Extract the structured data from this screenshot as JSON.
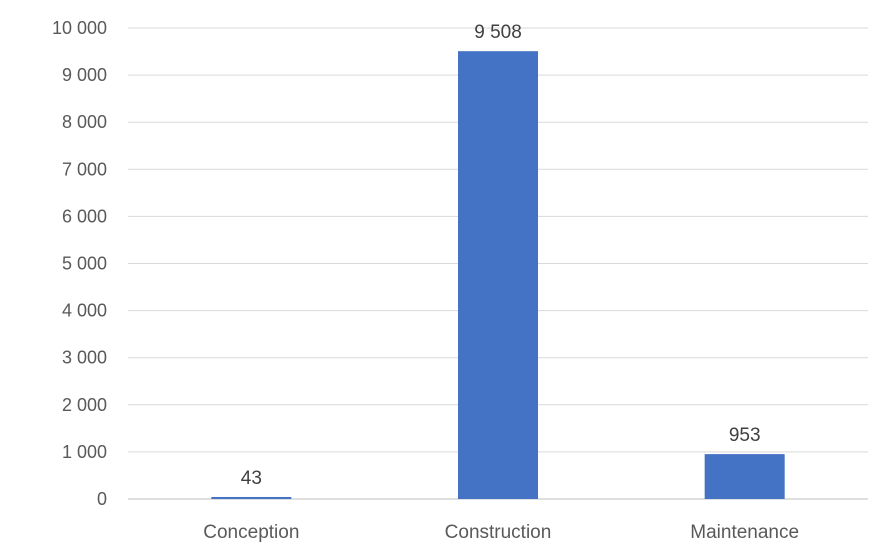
{
  "chart_data": {
    "type": "bar",
    "categories": [
      "Conception",
      "Construction",
      "Maintenance"
    ],
    "values": [
      43,
      9508,
      953
    ],
    "data_labels": [
      "43",
      "9 508",
      "953"
    ],
    "ylim": [
      0,
      10000
    ],
    "yticks": [
      0,
      1000,
      2000,
      3000,
      4000,
      5000,
      6000,
      7000,
      8000,
      9000,
      10000
    ],
    "ytick_labels": [
      "0",
      "1 000",
      "2 000",
      "3 000",
      "4 000",
      "5 000",
      "6 000",
      "7 000",
      "8 000",
      "9 000",
      "10 000"
    ],
    "title": "",
    "xlabel": "",
    "ylabel": "",
    "grid": true,
    "legend": "none",
    "bar_color": "#4472c4"
  }
}
